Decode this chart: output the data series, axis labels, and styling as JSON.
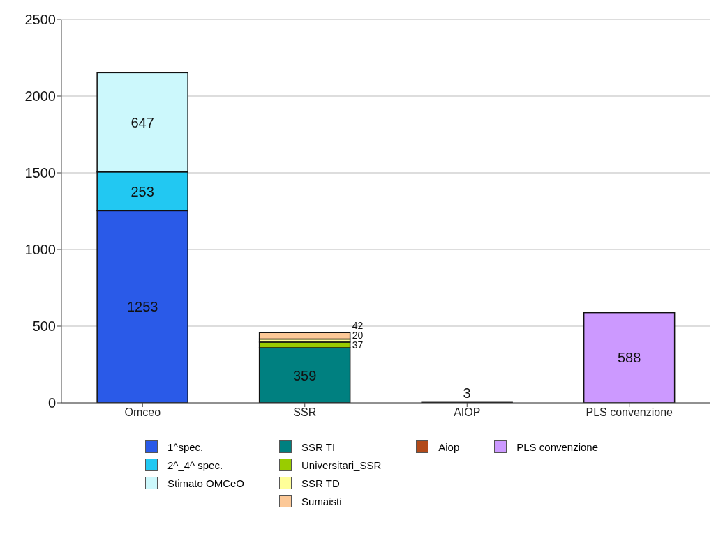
{
  "chart_data": {
    "type": "bar",
    "stacked": true,
    "categories": [
      "Omceo",
      "SSR",
      "AIOP",
      "PLS convenzione"
    ],
    "series": [
      {
        "name": "1^spec.",
        "color": "#2a5ae8",
        "values": [
          1253,
          null,
          null,
          null
        ]
      },
      {
        "name": "2^_4^ spec.",
        "color": "#22c8f2",
        "values": [
          253,
          null,
          null,
          null
        ]
      },
      {
        "name": "Stimato OMCeO",
        "color": "#ccf8fc",
        "values": [
          647,
          null,
          null,
          null
        ]
      },
      {
        "name": "SSR TI",
        "color": "#008080",
        "values": [
          null,
          359,
          null,
          null
        ]
      },
      {
        "name": "Universitari_SSR",
        "color": "#99cc00",
        "values": [
          null,
          37,
          null,
          null
        ]
      },
      {
        "name": "SSR TD",
        "color": "#ffff99",
        "values": [
          null,
          20,
          null,
          null
        ]
      },
      {
        "name": "Sumaisti",
        "color": "#fcc897",
        "values": [
          null,
          42,
          null,
          null
        ]
      },
      {
        "name": "Aiop",
        "color": "#b24a1a",
        "values": [
          null,
          null,
          3,
          null
        ]
      },
      {
        "name": "PLS convenzione",
        "color": "#cc99ff",
        "values": [
          null,
          null,
          null,
          588
        ]
      }
    ],
    "ylim": [
      0,
      2500
    ],
    "yticks": [
      0,
      500,
      1000,
      1500,
      2000,
      2500
    ],
    "grid": "y",
    "legend": "bottom",
    "data_labels": true
  }
}
